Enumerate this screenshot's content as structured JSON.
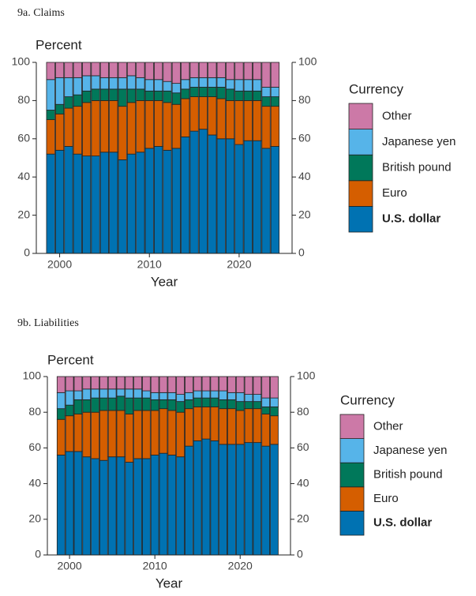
{
  "chart_data": [
    {
      "type": "bar",
      "stacked": true,
      "title": "9a. Claims",
      "y_label": "Percent",
      "x_label": "Year",
      "legend_title": "Currency",
      "x": [
        1999,
        2000,
        2001,
        2002,
        2003,
        2004,
        2005,
        2006,
        2007,
        2008,
        2009,
        2010,
        2011,
        2012,
        2013,
        2014,
        2015,
        2016,
        2017,
        2018,
        2019,
        2020,
        2021,
        2022,
        2023,
        2024
      ],
      "xlim": [
        1997.4,
        2025.9
      ],
      "xticks": [
        2000,
        2010,
        2020
      ],
      "ylim": [
        0,
        100
      ],
      "yticks": [
        0,
        20,
        40,
        60,
        80,
        100
      ],
      "right_axis": true,
      "series": [
        {
          "name": "U.S. dollar",
          "color": "#0072b2",
          "values": [
            52,
            54,
            56,
            52,
            51,
            51,
            53,
            53,
            49,
            52,
            53,
            55,
            56,
            54,
            55,
            61,
            64,
            65,
            62,
            60,
            60,
            57,
            59,
            59,
            55,
            56
          ]
        },
        {
          "name": "Euro",
          "color": "#d55e00",
          "values": [
            18,
            19,
            20,
            25,
            28,
            29,
            27,
            27,
            28,
            27,
            27,
            25,
            24,
            25,
            23,
            20,
            18,
            17,
            20,
            21,
            20,
            23,
            21,
            21,
            22,
            21
          ]
        },
        {
          "name": "British pound",
          "color": "#00785a",
          "values": [
            5,
            5,
            6,
            6,
            6,
            6,
            6,
            6,
            9,
            7,
            6,
            5,
            5,
            6,
            6,
            5,
            5,
            5,
            5,
            6,
            6,
            5,
            5,
            5,
            5,
            5
          ]
        },
        {
          "name": "Japanese yen",
          "color": "#56b4e9",
          "values": [
            16,
            14,
            10,
            9,
            8,
            7,
            6,
            6,
            6,
            7,
            6,
            6,
            6,
            5,
            5,
            5,
            5,
            5,
            5,
            5,
            5,
            6,
            6,
            6,
            5,
            5
          ]
        },
        {
          "name": "Other",
          "color": "#cc79a7",
          "values": [
            9,
            8,
            8,
            8,
            7,
            7,
            8,
            8,
            8,
            7,
            8,
            9,
            9,
            10,
            11,
            9,
            8,
            8,
            8,
            8,
            9,
            9,
            9,
            9,
            13,
            13
          ]
        }
      ]
    },
    {
      "type": "bar",
      "stacked": true,
      "title": "9b. Liabilities",
      "y_label": "Percent",
      "x_label": "Year",
      "legend_title": "Currency",
      "x": [
        1999,
        2000,
        2001,
        2002,
        2003,
        2004,
        2005,
        2006,
        2007,
        2008,
        2009,
        2010,
        2011,
        2012,
        2013,
        2014,
        2015,
        2016,
        2017,
        2018,
        2019,
        2020,
        2021,
        2022,
        2023,
        2024
      ],
      "xlim": [
        1997.4,
        2025.9
      ],
      "xticks": [
        2000,
        2010,
        2020
      ],
      "ylim": [
        0,
        100
      ],
      "yticks": [
        0,
        20,
        40,
        60,
        80,
        100
      ],
      "right_axis": true,
      "series": [
        {
          "name": "U.S. dollar",
          "color": "#0072b2",
          "values": [
            56,
            58,
            58,
            55,
            54,
            53,
            55,
            55,
            52,
            54,
            54,
            56,
            57,
            56,
            55,
            61,
            64,
            65,
            64,
            62,
            62,
            62,
            63,
            63,
            61,
            62
          ]
        },
        {
          "name": "Euro",
          "color": "#d55e00",
          "values": [
            20,
            20,
            21,
            25,
            26,
            28,
            26,
            26,
            27,
            27,
            27,
            25,
            25,
            25,
            25,
            21,
            19,
            18,
            19,
            20,
            20,
            19,
            19,
            19,
            18,
            16
          ]
        },
        {
          "name": "British pound",
          "color": "#00785a",
          "values": [
            6,
            6,
            8,
            7,
            8,
            7,
            7,
            8,
            9,
            7,
            7,
            6,
            5,
            6,
            6,
            5,
            5,
            5,
            5,
            5,
            5,
            5,
            4,
            4,
            4,
            5
          ]
        },
        {
          "name": "Japanese yen",
          "color": "#56b4e9",
          "values": [
            9,
            8,
            5,
            6,
            5,
            5,
            5,
            4,
            5,
            5,
            4,
            4,
            4,
            4,
            4,
            4,
            4,
            4,
            4,
            5,
            4,
            5,
            4,
            4,
            5,
            5
          ]
        },
        {
          "name": "Other",
          "color": "#cc79a7",
          "values": [
            9,
            8,
            8,
            7,
            7,
            7,
            7,
            7,
            7,
            7,
            8,
            9,
            9,
            9,
            10,
            9,
            8,
            8,
            8,
            8,
            9,
            9,
            10,
            10,
            12,
            12
          ]
        }
      ]
    }
  ]
}
